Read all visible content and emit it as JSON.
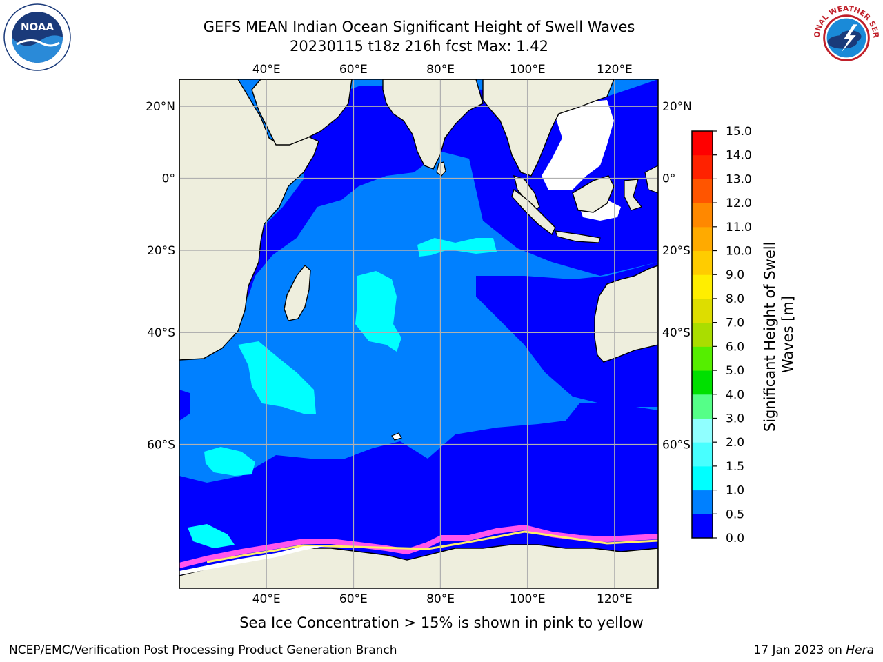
{
  "header": {
    "title_line1": "GEFS MEAN Indian Ocean Significant Height of Swell Waves",
    "title_line2": "20230115 t18z 216h fcst   Max: 1.42"
  },
  "map": {
    "region": "Indian Ocean",
    "lon_range": [
      20,
      130
    ],
    "lat_range": [
      -75,
      27
    ],
    "lon_ticks": [
      "40°E",
      "60°E",
      "80°E",
      "100°E",
      "120°E"
    ],
    "lat_ticks": [
      "20°N",
      "0°",
      "20°S",
      "40°S",
      "60°S"
    ],
    "grid": true,
    "colors": {
      "land": "#eeeedd",
      "ocean_0_0_5": "#0000ff",
      "ocean_0_5_1_0": "#0080ff",
      "ocean_1_0_1_5": "#00ffff",
      "sea_ice_edge": "#ff55ee",
      "no_data": "#ffffff"
    }
  },
  "colorbar": {
    "label": "Significant Height of Swell Waves [m]",
    "ticks": [
      "0.0",
      "0.5",
      "1.0",
      "1.5",
      "2.0",
      "3.0",
      "4.0",
      "5.0",
      "6.0",
      "7.0",
      "8.0",
      "9.0",
      "10.0",
      "11.0",
      "12.0",
      "13.0",
      "14.0",
      "15.0"
    ],
    "colors": [
      "#0000ff",
      "#0080ff",
      "#00ffff",
      "#48ffff",
      "#90ffff",
      "#55ff88",
      "#00e000",
      "#55ee00",
      "#aadd00",
      "#dddd00",
      "#ffee00",
      "#ffcc00",
      "#ffaa00",
      "#ff8800",
      "#ff5500",
      "#ff2200",
      "#ff0000"
    ]
  },
  "caption": "Sea Ice Concentration > 15% is shown in pink to yellow",
  "footer": {
    "left": "NCEP/EMC/Verification Post Processing Product Generation Branch",
    "right_date": "17 Jan 2023 on",
    "right_host": "Hera"
  },
  "logos": {
    "noaa_text": "NOAA",
    "nws_text": "NATIONAL WEATHER SERVICE"
  }
}
